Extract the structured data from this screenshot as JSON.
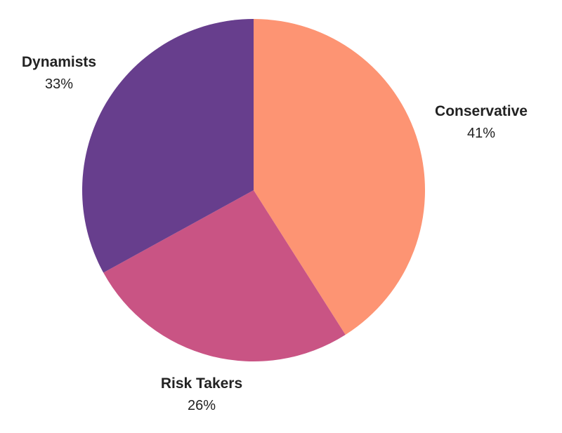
{
  "chart_data": {
    "type": "pie",
    "title": "",
    "slices": [
      {
        "label": "Conservative",
        "value": 41,
        "display": "41%",
        "color": "#FD9473"
      },
      {
        "label": "Risk Takers",
        "value": 26,
        "display": "26%",
        "color": "#C95484"
      },
      {
        "label": "Dynamists",
        "value": 33,
        "display": "33%",
        "color": "#673E8D"
      }
    ],
    "start": "12 o'clock",
    "direction": "clockwise",
    "legend": "none",
    "labels": "outside"
  }
}
